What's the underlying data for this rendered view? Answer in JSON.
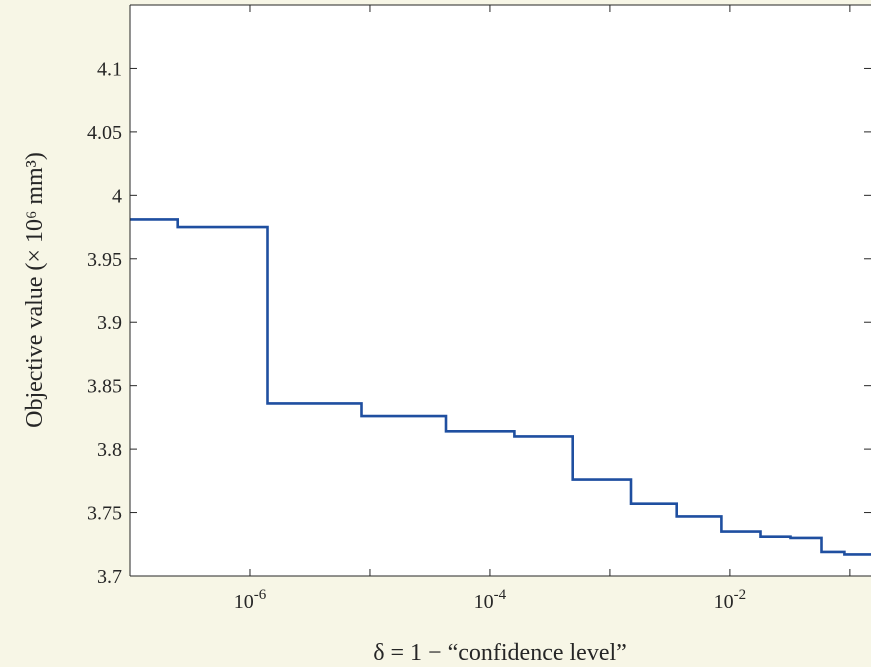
{
  "chart_data": {
    "type": "line",
    "step": true,
    "title": "",
    "xlabel": "δ = 1 − “confidence level”",
    "ylabel": "Objective value (× 10⁶ mm³)",
    "xscale": "log",
    "xlim": [
      1e-07,
      0.15
    ],
    "ylim": [
      3.7,
      4.15
    ],
    "xticks": [
      {
        "value": 1e-06,
        "label": "10",
        "exp": "-6"
      },
      {
        "value": 0.0001,
        "label": "10",
        "exp": "-4"
      },
      {
        "value": 0.01,
        "label": "10",
        "exp": "-2"
      }
    ],
    "yticks": [
      {
        "value": 3.7,
        "label": "3.7"
      },
      {
        "value": 3.75,
        "label": "3.75"
      },
      {
        "value": 3.8,
        "label": "3.8"
      },
      {
        "value": 3.85,
        "label": "3.85"
      },
      {
        "value": 3.9,
        "label": "3.9"
      },
      {
        "value": 3.95,
        "label": "3.95"
      },
      {
        "value": 4.0,
        "label": "4"
      },
      {
        "value": 4.05,
        "label": "4.05"
      },
      {
        "value": 4.1,
        "label": "4.1"
      }
    ],
    "grid": false,
    "series": [
      {
        "color": "#1f4fa0",
        "x": [
          1e-07,
          2.5e-07,
          1.4e-06,
          8.5e-06,
          4.3e-05,
          0.00016,
          0.00049,
          0.0015,
          0.0036,
          0.0085,
          0.018,
          0.032,
          0.058,
          0.09,
          0.15
        ],
        "y": [
          3.981,
          3.975,
          3.836,
          3.826,
          3.814,
          3.81,
          3.776,
          3.757,
          3.747,
          3.735,
          3.731,
          3.73,
          3.719,
          3.717,
          3.717
        ]
      }
    ]
  }
}
